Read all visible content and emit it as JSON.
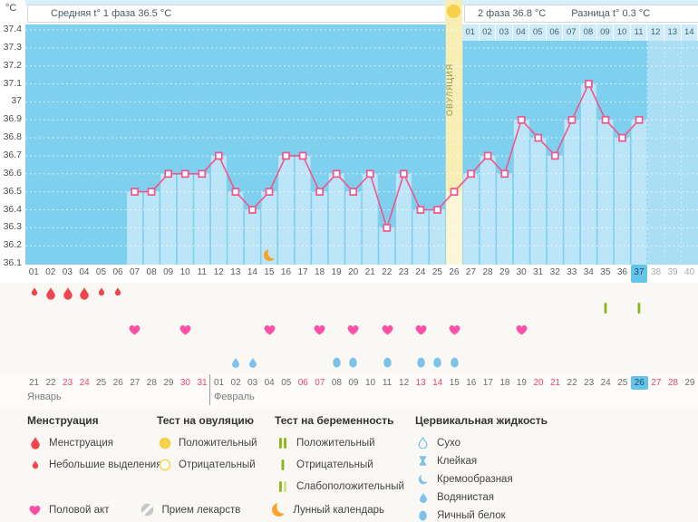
{
  "header": {
    "y_unit": "°C",
    "phase1": "Средняя t° 1 фаза 36.5 °C",
    "phase2": "2 фаза 36.8 °C",
    "difference": "Разница t° 0.3 °C",
    "ovulation_label": "ОВУЛЯЦИЯ",
    "phase2_day_numbers": [
      "01",
      "02",
      "03",
      "04",
      "05",
      "06",
      "07",
      "08",
      "09",
      "10",
      "11",
      "12",
      "13",
      "14"
    ]
  },
  "chart_data": {
    "type": "line",
    "title": "Basal body temperature cycle chart",
    "ylabel": "°C",
    "ylim": [
      36.1,
      37.4
    ],
    "y_ticks": [
      "37.4",
      "37.3",
      "37.2",
      "37.1",
      "37",
      "36.9",
      "36.8",
      "36.7",
      "36.6",
      "36.5",
      "36.4",
      "36.3",
      "36.2",
      "36.1"
    ],
    "x_days_total": 40,
    "grid": "dotted-white, horizontal each 0.1 °C",
    "series": [
      {
        "name": "temperature",
        "start_day": 7,
        "values": [
          36.5,
          36.5,
          36.6,
          36.6,
          36.6,
          36.7,
          36.5,
          36.4,
          36.5,
          36.7,
          36.7,
          36.5,
          36.6,
          36.5,
          36.6,
          36.3,
          36.6,
          36.4,
          36.4,
          36.5,
          36.6,
          36.7,
          36.6,
          36.9,
          36.8,
          36.7,
          36.9,
          37.1,
          36.9,
          36.8,
          36.9
        ]
      }
    ],
    "ovulation_day": 26,
    "current_day": 37,
    "lunar_calendar_day": 15
  },
  "cycle_days": {
    "labels": [
      "01",
      "02",
      "03",
      "04",
      "05",
      "06",
      "07",
      "08",
      "09",
      "10",
      "11",
      "12",
      "13",
      "14",
      "15",
      "16",
      "17",
      "18",
      "19",
      "20",
      "21",
      "22",
      "23",
      "24",
      "25",
      "26",
      "27",
      "28",
      "29",
      "30",
      "31",
      "32",
      "33",
      "34",
      "35",
      "36",
      "37",
      "38",
      "39",
      "40"
    ],
    "highlight_day": 37,
    "future_from_day": 38
  },
  "events": {
    "menstruation": [
      {
        "day": 1,
        "type": "spotting"
      },
      {
        "day": 2,
        "type": "period"
      },
      {
        "day": 3,
        "type": "period"
      },
      {
        "day": 4,
        "type": "period"
      },
      {
        "day": 5,
        "type": "spotting"
      },
      {
        "day": 6,
        "type": "spotting"
      }
    ],
    "pregnancy_test_negative_days": [
      35,
      37
    ],
    "intercourse_days": [
      7,
      10,
      15,
      18,
      20,
      22,
      24,
      26,
      30
    ],
    "cervical_watery_days": [
      13,
      14
    ],
    "cervical_eggwhite_days": [
      19,
      20,
      22,
      24,
      25,
      26
    ]
  },
  "calendar": {
    "months": [
      {
        "name": "Январь",
        "dates": [
          21,
          22,
          23,
          24,
          25,
          26,
          27,
          28,
          29,
          30,
          31
        ],
        "weekends": [
          23,
          24,
          30,
          31
        ]
      },
      {
        "name": "Февраль",
        "dates": [
          1,
          2,
          3,
          4,
          5,
          6,
          7,
          8,
          9,
          10,
          11,
          12,
          13,
          14,
          15,
          16,
          17,
          18,
          19,
          20,
          21,
          22,
          23,
          24,
          25,
          26,
          27,
          28,
          29
        ],
        "weekends": [
          6,
          7,
          13,
          14,
          20,
          21,
          27,
          28
        ]
      }
    ],
    "highlight": {
      "month": "Февраль",
      "date": 26
    }
  },
  "legend": {
    "sections": [
      {
        "title": "Менструация",
        "items": [
          {
            "icon": "drop-red-large",
            "label": "Менструация"
          },
          {
            "icon": "drop-red-small",
            "label": "Небольшие выделения"
          }
        ]
      },
      {
        "title": "Тест на овуляцию",
        "items": [
          {
            "icon": "circle-yellow-filled",
            "label": "Положительный"
          },
          {
            "icon": "circle-yellow-outline",
            "label": "Отрицательный"
          }
        ]
      },
      {
        "title": "Тест на беременность",
        "items": [
          {
            "icon": "test-two-bars",
            "label": "Положительный"
          },
          {
            "icon": "test-one-bar",
            "label": "Отрицательный"
          },
          {
            "icon": "test-weak-bars",
            "label": "Слабоположительный"
          }
        ]
      },
      {
        "title": "Цервикальная жидкость",
        "items": [
          {
            "icon": "drop-outline-blue",
            "label": "Сухо"
          },
          {
            "icon": "spool-blue",
            "label": "Клейкая"
          },
          {
            "icon": "crescent-blue",
            "label": "Кремообразная"
          },
          {
            "icon": "drop-blue",
            "label": "Водянистая"
          },
          {
            "icon": "egg-blue",
            "label": "Яичный белок"
          }
        ]
      }
    ],
    "footer": [
      {
        "icon": "heart-pink",
        "label": "Половой акт"
      },
      {
        "icon": "pill-gray",
        "label": "Прием лекарств"
      },
      {
        "icon": "moon-orange",
        "label": "Лунный календарь"
      }
    ]
  },
  "colors": {
    "chart_bg": "#7fd0ef",
    "chart_bg_future": "#a9def4",
    "bar_fill": "rgba(255,255,255,0.48)",
    "line": "#f0558b",
    "ovulation_band": "#f6eeb2",
    "ovulation_yellow": "#f8d14b",
    "menstruation_red": "#f2444d",
    "heart_pink": "#fb4fa8",
    "cervical_blue": "#7cc2ea",
    "test_green": "#8cb81b",
    "test_green_light": "#d0e08e",
    "moon_orange": "#f6a42a",
    "pill_gray": "#c8c8c8",
    "highlight_blue": "#66c4e9",
    "weekend_red": "#ef4468"
  }
}
